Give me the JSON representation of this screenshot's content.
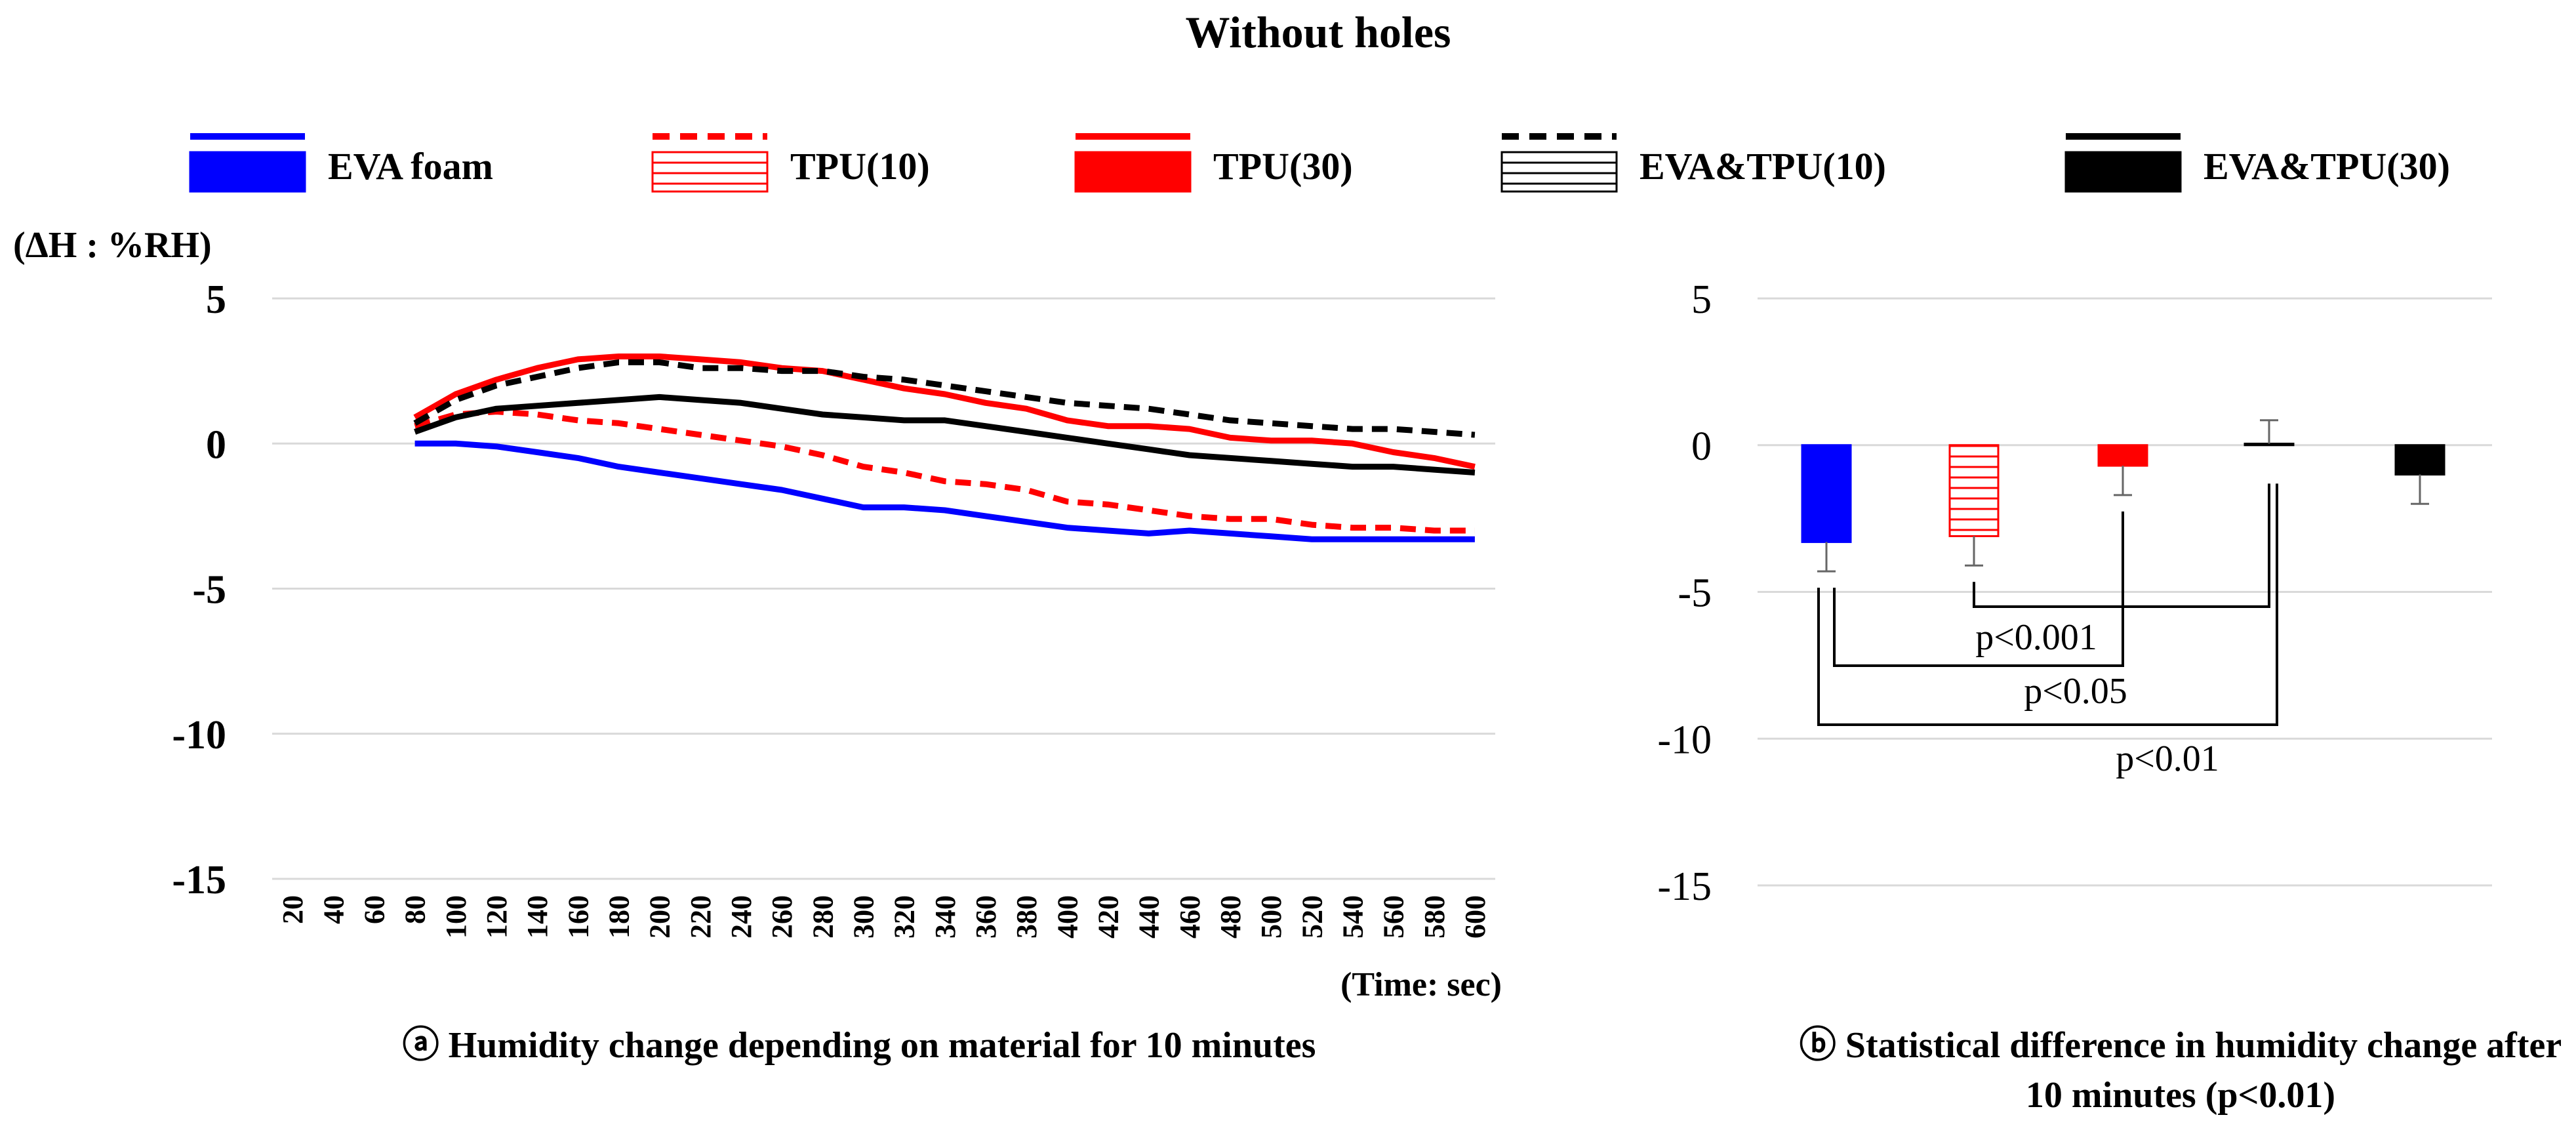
{
  "title": "Without holes",
  "legend": [
    {
      "name": "EVA foam",
      "color": "#0000ff",
      "line": "solid",
      "fill": "solid"
    },
    {
      "name": "TPU(10)",
      "color": "#ff0000",
      "line": "dashed",
      "fill": "hatched"
    },
    {
      "name": "TPU(30)",
      "color": "#ff0000",
      "line": "solid",
      "fill": "solid"
    },
    {
      "name": "EVA&TPU(10)",
      "color": "#000000",
      "line": "dashed",
      "fill": "hatched"
    },
    {
      "name": "EVA&TPU(30)",
      "color": "#000000",
      "line": "solid",
      "fill": "solid"
    }
  ],
  "chart_data": [
    {
      "type": "line",
      "ylabel": "(ΔH : %RH)",
      "xlabel": "(Time: sec)",
      "caption": "ⓐ Humidity change depending on material for 10 minutes",
      "ylim": [
        -15,
        5
      ],
      "yticks": [
        5,
        0,
        -5,
        -10,
        -15
      ],
      "ytick_labels": [
        "5",
        "0",
        "-5",
        "-10",
        "-15"
      ],
      "x_categories": [
        "20",
        "40",
        "60",
        "80",
        "100",
        "120",
        "140",
        "160",
        "180",
        "200",
        "220",
        "240",
        "260",
        "280",
        "300",
        "320",
        "340",
        "360",
        "380",
        "400",
        "420",
        "440",
        "460",
        "480",
        "500",
        "520",
        "540",
        "560",
        "580",
        "600"
      ],
      "grid": true,
      "series": [
        {
          "name": "EVA foam",
          "x": [
            80,
            100,
            120,
            140,
            160,
            180,
            200,
            220,
            240,
            260,
            280,
            300,
            320,
            340,
            360,
            380,
            400,
            420,
            440,
            460,
            480,
            500,
            520,
            540,
            560,
            580,
            600
          ],
          "values": [
            0.0,
            0.0,
            -0.1,
            -0.3,
            -0.5,
            -0.8,
            -1.0,
            -1.2,
            -1.4,
            -1.6,
            -1.9,
            -2.2,
            -2.2,
            -2.3,
            -2.5,
            -2.7,
            -2.9,
            -3.0,
            -3.1,
            -3.0,
            -3.1,
            -3.2,
            -3.3,
            -3.3,
            -3.3,
            -3.3,
            -3.3
          ]
        },
        {
          "name": "TPU(10)",
          "x": [
            80,
            100,
            120,
            140,
            160,
            180,
            200,
            220,
            240,
            260,
            280,
            300,
            320,
            340,
            360,
            380,
            400,
            420,
            440,
            460,
            480,
            500,
            520,
            540,
            560,
            580,
            600
          ],
          "values": [
            0.6,
            1.0,
            1.1,
            1.0,
            0.8,
            0.7,
            0.5,
            0.3,
            0.1,
            -0.1,
            -0.4,
            -0.8,
            -1.0,
            -1.3,
            -1.4,
            -1.6,
            -2.0,
            -2.1,
            -2.3,
            -2.5,
            -2.6,
            -2.6,
            -2.8,
            -2.9,
            -2.9,
            -3.0,
            -3.0
          ]
        },
        {
          "name": "TPU(30)",
          "x": [
            80,
            100,
            120,
            140,
            160,
            180,
            200,
            220,
            240,
            260,
            280,
            300,
            320,
            340,
            360,
            380,
            400,
            420,
            440,
            460,
            480,
            500,
            520,
            540,
            560,
            580,
            600
          ],
          "values": [
            0.9,
            1.7,
            2.2,
            2.6,
            2.9,
            3.0,
            3.0,
            2.9,
            2.8,
            2.6,
            2.5,
            2.2,
            1.9,
            1.7,
            1.4,
            1.2,
            0.8,
            0.6,
            0.6,
            0.5,
            0.2,
            0.1,
            0.1,
            0.0,
            -0.3,
            -0.5,
            -0.8
          ]
        },
        {
          "name": "EVA&TPU(10)",
          "x": [
            80,
            100,
            120,
            140,
            160,
            180,
            200,
            220,
            240,
            260,
            280,
            300,
            320,
            340,
            360,
            380,
            400,
            420,
            440,
            460,
            480,
            500,
            520,
            540,
            560,
            580,
            600
          ],
          "values": [
            0.7,
            1.5,
            2.0,
            2.3,
            2.6,
            2.8,
            2.8,
            2.6,
            2.6,
            2.5,
            2.5,
            2.3,
            2.2,
            2.0,
            1.8,
            1.6,
            1.4,
            1.3,
            1.2,
            1.0,
            0.8,
            0.7,
            0.6,
            0.5,
            0.5,
            0.4,
            0.3
          ]
        },
        {
          "name": "EVA&TPU(30)",
          "x": [
            80,
            100,
            120,
            140,
            160,
            180,
            200,
            220,
            240,
            260,
            280,
            300,
            320,
            340,
            360,
            380,
            400,
            420,
            440,
            460,
            480,
            500,
            520,
            540,
            560,
            580,
            600
          ],
          "values": [
            0.4,
            0.9,
            1.2,
            1.3,
            1.4,
            1.5,
            1.6,
            1.5,
            1.4,
            1.2,
            1.0,
            0.9,
            0.8,
            0.8,
            0.6,
            0.4,
            0.2,
            0.0,
            -0.2,
            -0.4,
            -0.5,
            -0.6,
            -0.7,
            -0.8,
            -0.8,
            -0.9,
            -1.0
          ]
        }
      ]
    },
    {
      "type": "bar",
      "caption_line1": "ⓑ Statistical difference in humidity change after",
      "caption_line2": "10 minutes (p<0.01)",
      "ylim": [
        -15,
        5
      ],
      "yticks": [
        5,
        0,
        -5,
        -10,
        -15
      ],
      "ytick_labels": [
        "5",
        "0",
        "-5",
        "-10",
        "-15"
      ],
      "grid": true,
      "categories": [
        "EVA foam",
        "TPU(10)",
        "TPU(30)",
        "EVA&TPU(10)",
        "EVA&TPU(30)"
      ],
      "values": [
        -3.3,
        -3.1,
        -0.7,
        0.05,
        -1.0
      ],
      "error": [
        1.0,
        1.0,
        1.0,
        0.8,
        1.0
      ],
      "annotations": [
        {
          "from": "TPU(10)",
          "to": "EVA&TPU(10)",
          "label": "p<0.001"
        },
        {
          "from": "EVA foam",
          "to": "TPU(30)",
          "label": "p<0.05"
        },
        {
          "from": "EVA foam",
          "to": "EVA&TPU(10)",
          "label": "p<0.01"
        }
      ]
    }
  ]
}
